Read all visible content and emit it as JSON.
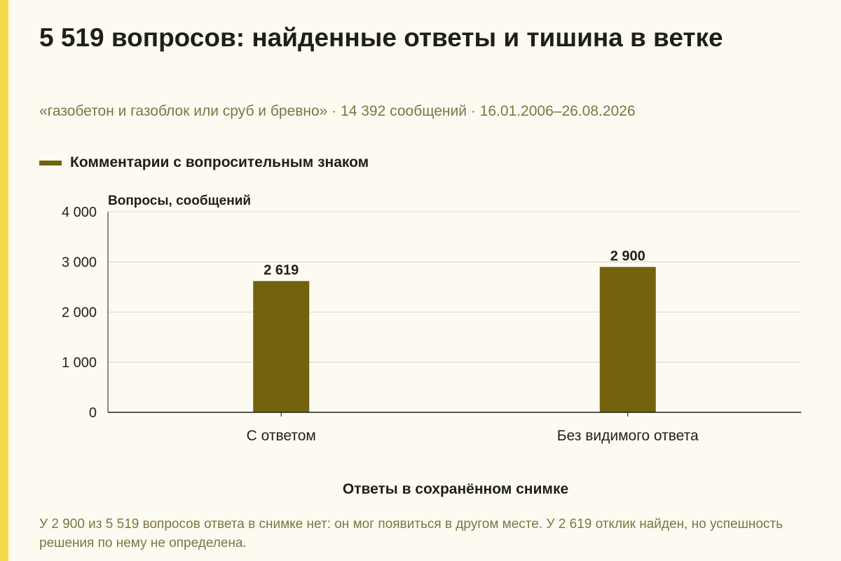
{
  "title": "5 519 вопросов: найденные ответы и тишина в ветке",
  "subtitle": "«газобетон и газоблок или сруб и бревно» · 14 392 сообщений · 16.01.2006–26.08.2026",
  "note": "У 2 900 из 5 519 вопросов ответа в снимке нет: он мог появиться в другом месте. У 2 619 отклик найден, но успешность решения по нему не определена.",
  "colors": {
    "background": "#fdfbf1",
    "accent_strip": "#f6d94a",
    "bar": "#73620e",
    "subtitle_text": "#7d7544",
    "gridline": "#d9d6c8"
  },
  "chart_data": {
    "type": "bar",
    "categories": [
      "С ответом",
      "Без видимого ответа"
    ],
    "series": [
      {
        "name": "Комментарии с вопросительным знаком",
        "values": [
          2619,
          2900
        ],
        "value_labels": [
          "2 619",
          "2 900"
        ]
      }
    ],
    "xlabel": "Ответы в сохранённом снимке",
    "ylabel": "Вопросы, сообщений",
    "ylim": [
      0,
      4000
    ],
    "yticks": [
      0,
      1000,
      2000,
      3000,
      4000
    ],
    "ytick_labels": [
      "0",
      "1 000",
      "2 000",
      "3 000",
      "4 000"
    ],
    "grid": true,
    "legend_position": "top-left"
  }
}
